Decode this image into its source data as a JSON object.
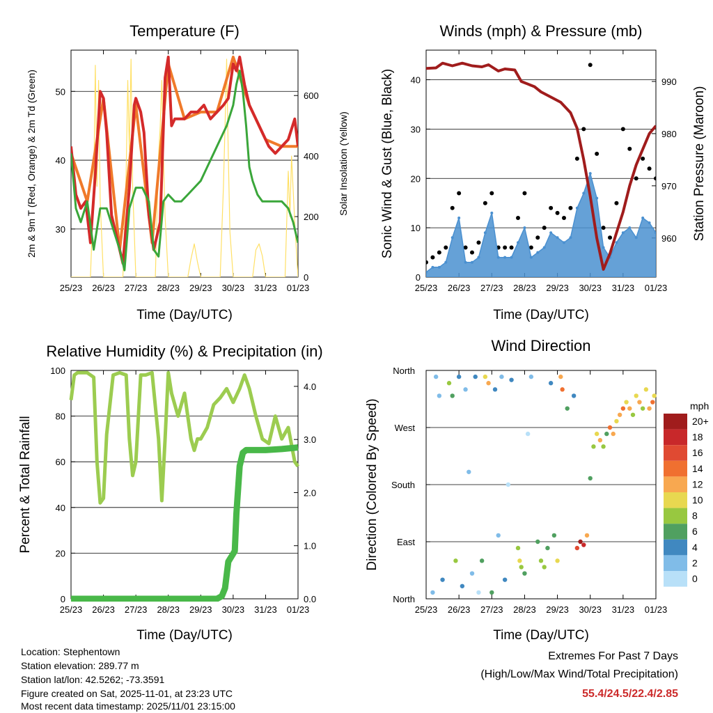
{
  "chart_data": [
    {
      "type": "line",
      "title": "Temperature (F)",
      "xlabel": "Time (Day/UTC)",
      "ylabel": "2m & 9m T (Red, Orange) & 2m Td (Green)",
      "ylabel_right": "Solar Insolation (Yellow)",
      "x_ticks": [
        "25/23",
        "26/23",
        "27/23",
        "28/23",
        "29/23",
        "30/23",
        "31/23",
        "01/23"
      ],
      "ylim": [
        23,
        56
      ],
      "y_ticks": [
        30,
        40,
        50
      ],
      "ylim_right": [
        0,
        750
      ],
      "y_ticks_right": [
        0,
        200,
        400,
        600
      ],
      "grid": "horizontal",
      "series": [
        {
          "name": "2m T",
          "color": "#d42a2a",
          "x": [
            0,
            0.15,
            0.3,
            0.45,
            0.6,
            0.75,
            0.9,
            1.0,
            1.1,
            1.25,
            1.4,
            1.6,
            1.8,
            1.95,
            2.0,
            2.15,
            2.25,
            2.4,
            2.55,
            2.75,
            2.9,
            3.0,
            3.1,
            3.2,
            3.35,
            3.5,
            3.7,
            3.9,
            4.1,
            4.3,
            4.5,
            4.7,
            4.85,
            5.0,
            5.1,
            5.2,
            5.35,
            5.5,
            5.7,
            5.9,
            6.1,
            6.3,
            6.5,
            6.7,
            6.9,
            7.0
          ],
          "values": [
            42,
            35,
            33,
            34,
            28,
            38,
            50,
            49,
            44,
            32,
            29,
            25,
            36,
            48,
            49,
            47,
            44,
            32,
            27,
            31,
            52,
            55,
            45,
            46,
            46,
            46,
            47,
            47,
            48,
            46,
            47,
            48,
            49,
            54,
            53,
            55,
            51,
            48,
            46,
            44,
            42,
            41,
            42,
            43,
            46,
            42
          ]
        },
        {
          "name": "9m T",
          "color": "#f07a2a",
          "x": [
            0,
            0.5,
            1.0,
            1.5,
            2.0,
            2.5,
            3.0,
            3.5,
            4.0,
            4.5,
            5.0,
            5.5,
            6.0,
            6.5,
            7.0
          ],
          "values": [
            41,
            34,
            49,
            27,
            48,
            28,
            54,
            46,
            47,
            47,
            55,
            48,
            43,
            42,
            42
          ]
        },
        {
          "name": "2m Td",
          "color": "#3aa63a",
          "x": [
            0,
            0.15,
            0.3,
            0.5,
            0.7,
            0.9,
            1.0,
            1.1,
            1.3,
            1.5,
            1.65,
            1.8,
            2.0,
            2.2,
            2.4,
            2.55,
            2.7,
            2.85,
            3.0,
            3.2,
            3.4,
            3.6,
            3.8,
            4.0,
            4.2,
            4.4,
            4.6,
            4.8,
            5.0,
            5.1,
            5.2,
            5.3,
            5.4,
            5.5,
            5.6,
            5.75,
            5.9,
            6.1,
            6.3,
            6.5,
            6.7,
            6.85,
            7.0
          ],
          "values": [
            41,
            33,
            31,
            34,
            27,
            33,
            33,
            33,
            30,
            27,
            24,
            33,
            36,
            36,
            34,
            27,
            26,
            34,
            35,
            34,
            34,
            35,
            36,
            37,
            39,
            41,
            43,
            45,
            48,
            51,
            53,
            50,
            45,
            39,
            37,
            35,
            34,
            34,
            34,
            34,
            33,
            31,
            28
          ]
        },
        {
          "name": "Solar Insolation",
          "color": "#ffe066",
          "axis": "right",
          "x": [
            0,
            0.6,
            0.7,
            0.75,
            0.8,
            0.85,
            0.9,
            1.0,
            1.6,
            1.7,
            1.75,
            1.8,
            1.85,
            1.9,
            2.0,
            2.6,
            2.7,
            2.75,
            2.8,
            2.85,
            2.9,
            3.0,
            3.6,
            3.7,
            3.8,
            3.9,
            4.0,
            4.6,
            4.7,
            4.75,
            4.8,
            4.85,
            4.9,
            5.0,
            5.6,
            5.7,
            5.8,
            5.9,
            6.0,
            6.6,
            6.7,
            6.75,
            6.8,
            6.9,
            7.0
          ],
          "values": [
            0,
            0,
            300,
            700,
            300,
            650,
            250,
            0,
            0,
            350,
            650,
            420,
            720,
            300,
            0,
            0,
            400,
            500,
            650,
            400,
            200,
            0,
            0,
            60,
            110,
            50,
            0,
            0,
            300,
            500,
            720,
            400,
            150,
            0,
            0,
            90,
            110,
            70,
            0,
            0,
            350,
            200,
            400,
            180,
            0
          ]
        }
      ]
    },
    {
      "type": "scatter",
      "title": "Winds (mph) & Pressure (mb)",
      "xlabel": "Time (Day/UTC)",
      "ylabel": "Sonic Wind & Gust (Blue, Black)",
      "ylabel_right": "Station Pressure (Maroon)",
      "x_ticks": [
        "25/23",
        "26/23",
        "27/23",
        "28/23",
        "29/23",
        "30/23",
        "31/23",
        "01/23"
      ],
      "ylim": [
        0,
        46
      ],
      "y_ticks": [
        0,
        10,
        20,
        30,
        40
      ],
      "ylim_right": [
        952.5,
        996
      ],
      "y_ticks_right": [
        960,
        970,
        980,
        990
      ],
      "grid": "horizontal",
      "series": [
        {
          "name": "Sonic Wind",
          "color": "#4a90d0",
          "x": [
            0,
            0.2,
            0.4,
            0.6,
            0.8,
            1.0,
            1.2,
            1.4,
            1.6,
            1.8,
            2.0,
            2.2,
            2.4,
            2.6,
            2.8,
            3.0,
            3.2,
            3.4,
            3.6,
            3.8,
            4.0,
            4.2,
            4.4,
            4.6,
            4.8,
            5.0,
            5.2,
            5.4,
            5.6,
            5.8,
            6.0,
            6.2,
            6.4,
            6.6,
            6.8,
            7.0
          ],
          "values": [
            1,
            2,
            2,
            3,
            8,
            12,
            3,
            3,
            4,
            9,
            13,
            4,
            4,
            4,
            7,
            10,
            4,
            5,
            6,
            9,
            8,
            7,
            8,
            14,
            17,
            21,
            16,
            6,
            4,
            7,
            9,
            10,
            8,
            12,
            11,
            9
          ]
        },
        {
          "name": "Gust",
          "color": "#000000",
          "x": [
            0,
            0.2,
            0.4,
            0.6,
            0.8,
            1.0,
            1.2,
            1.4,
            1.6,
            1.8,
            2.0,
            2.2,
            2.4,
            2.6,
            2.8,
            3.0,
            3.2,
            3.4,
            3.6,
            3.8,
            4.0,
            4.2,
            4.4,
            4.6,
            4.8,
            5.0,
            5.2,
            5.4,
            5.6,
            5.8,
            6.0,
            6.2,
            6.4,
            6.6,
            6.8,
            7.0
          ],
          "values": [
            3,
            4,
            5,
            6,
            14,
            17,
            6,
            5,
            7,
            15,
            17,
            6,
            6,
            6,
            12,
            17,
            6,
            8,
            10,
            14,
            13,
            12,
            14,
            24,
            30,
            43,
            25,
            10,
            8,
            15,
            30,
            26,
            20,
            24,
            22,
            20
          ]
        },
        {
          "name": "Station Pressure",
          "color": "#a01c1c",
          "axis": "right",
          "x": [
            0,
            0.3,
            0.5,
            0.8,
            1.1,
            1.4,
            1.7,
            1.9,
            2.2,
            2.4,
            2.7,
            2.9,
            3.1,
            3.3,
            3.5,
            3.8,
            4.1,
            4.4,
            4.6,
            4.8,
            5.0,
            5.2,
            5.4,
            5.6,
            5.8,
            6.0,
            6.2,
            6.4,
            6.6,
            6.8,
            7.0
          ],
          "values": [
            992.5,
            992.6,
            993.5,
            993.0,
            993.5,
            993.0,
            992.8,
            993.2,
            992.0,
            992.4,
            992.2,
            990.0,
            989.5,
            989.0,
            988.0,
            987.0,
            986.0,
            984.0,
            981.0,
            975.0,
            968.0,
            960.0,
            954.0,
            957.0,
            961.0,
            965.0,
            970.0,
            974.0,
            977.0,
            980.0,
            981.5
          ]
        }
      ]
    },
    {
      "type": "line",
      "title": "Relative Humidity (%) & Precipitation (in)",
      "xlabel": "Time (Day/UTC)",
      "ylabel": "Percent & Total Rainfall",
      "x_ticks": [
        "25/23",
        "26/23",
        "27/23",
        "28/23",
        "29/23",
        "30/23",
        "31/23",
        "01/23"
      ],
      "ylim": [
        0,
        100
      ],
      "y_ticks": [
        0,
        20,
        40,
        60,
        80,
        100
      ],
      "ylim_right": [
        0,
        4.3
      ],
      "y_ticks_right": [
        "0.0",
        "1.0",
        "2.0",
        "3.0",
        "4.0"
      ],
      "grid": "horizontal",
      "series": [
        {
          "name": "Relative Humidity",
          "color": "#9ccc50",
          "x": [
            0,
            0.1,
            0.2,
            0.5,
            0.7,
            0.8,
            0.9,
            1.0,
            1.1,
            1.3,
            1.5,
            1.7,
            1.8,
            1.9,
            2.0,
            2.15,
            2.3,
            2.5,
            2.7,
            2.8,
            2.9,
            3.0,
            3.1,
            3.3,
            3.5,
            3.7,
            3.8,
            3.9,
            4.0,
            4.2,
            4.4,
            4.6,
            4.8,
            5.0,
            5.2,
            5.35,
            5.5,
            5.7,
            5.9,
            6.1,
            6.3,
            6.5,
            6.7,
            6.9,
            7.0
          ],
          "values": [
            87,
            98,
            99,
            99,
            97,
            60,
            42,
            44,
            72,
            98,
            99,
            98,
            70,
            54,
            60,
            98,
            98,
            99,
            70,
            43,
            70,
            99,
            90,
            80,
            90,
            70,
            65,
            70,
            70,
            75,
            85,
            88,
            92,
            86,
            92,
            98,
            92,
            80,
            70,
            68,
            80,
            70,
            75,
            60,
            58
          ]
        },
        {
          "name": "Total Rainfall",
          "color": "#49b849",
          "axis": "right",
          "x": [
            0,
            4.5,
            4.65,
            4.75,
            4.85,
            5.0,
            5.05,
            5.1,
            5.2,
            5.3,
            5.4,
            6.0,
            6.5,
            7.0
          ],
          "values": [
            0.0,
            0.0,
            0.05,
            0.2,
            0.7,
            0.85,
            0.9,
            1.6,
            2.5,
            2.75,
            2.8,
            2.8,
            2.82,
            2.85
          ]
        }
      ]
    },
    {
      "type": "scatter",
      "title": "Wind Direction",
      "xlabel": "Time (Day/UTC)",
      "ylabel": "Direction (Colored By Speed)",
      "x_ticks": [
        "25/23",
        "26/23",
        "27/23",
        "28/23",
        "29/23",
        "30/23",
        "31/23",
        "01/23"
      ],
      "ylim": [
        0,
        360
      ],
      "y_ticks": [
        "North",
        "East",
        "South",
        "West",
        "North"
      ],
      "grid": "horizontal",
      "colorbar": {
        "title": "mph",
        "labels": [
          "20+",
          "18",
          "16",
          "14",
          "12",
          "10",
          "8",
          "6",
          "4",
          "2",
          "0"
        ],
        "colors": [
          "#a01c1c",
          "#c8282a",
          "#e04a32",
          "#f07030",
          "#f8a850",
          "#e8d850",
          "#98c840",
          "#50a060",
          "#4088c0",
          "#80bce8",
          "#b8e0f8"
        ]
      },
      "points": [
        [
          0.2,
          10,
          2
        ],
        [
          0.3,
          350,
          3
        ],
        [
          0.4,
          320,
          2
        ],
        [
          0.5,
          30,
          4
        ],
        [
          0.7,
          340,
          9
        ],
        [
          0.8,
          320,
          7
        ],
        [
          0.9,
          60,
          8
        ],
        [
          1.0,
          350,
          5
        ],
        [
          1.1,
          20,
          5
        ],
        [
          1.2,
          330,
          3
        ],
        [
          1.3,
          200,
          2
        ],
        [
          1.4,
          40,
          3
        ],
        [
          1.5,
          350,
          4
        ],
        [
          1.6,
          10,
          1
        ],
        [
          1.7,
          60,
          7
        ],
        [
          1.8,
          350,
          10
        ],
        [
          1.9,
          340,
          12
        ],
        [
          2.0,
          10,
          6
        ],
        [
          2.1,
          330,
          4
        ],
        [
          2.2,
          100,
          2
        ],
        [
          2.3,
          350,
          3
        ],
        [
          2.4,
          30,
          4
        ],
        [
          2.5,
          180,
          1
        ],
        [
          2.6,
          345,
          5
        ],
        [
          2.8,
          80,
          9
        ],
        [
          2.85,
          60,
          10
        ],
        [
          2.9,
          50,
          8
        ],
        [
          3.0,
          40,
          7
        ],
        [
          3.1,
          260,
          1
        ],
        [
          3.2,
          350,
          2
        ],
        [
          3.4,
          90,
          6
        ],
        [
          3.5,
          60,
          8
        ],
        [
          3.6,
          50,
          9
        ],
        [
          3.7,
          80,
          7
        ],
        [
          3.8,
          340,
          4
        ],
        [
          3.9,
          100,
          6
        ],
        [
          4.0,
          60,
          10
        ],
        [
          4.1,
          350,
          12
        ],
        [
          4.15,
          330,
          14
        ],
        [
          4.3,
          300,
          7
        ],
        [
          4.5,
          320,
          4
        ],
        [
          4.6,
          80,
          16
        ],
        [
          4.7,
          90,
          20
        ],
        [
          4.8,
          85,
          18
        ],
        [
          4.9,
          100,
          12
        ],
        [
          5.0,
          190,
          6
        ],
        [
          5.1,
          240,
          8
        ],
        [
          5.2,
          260,
          10
        ],
        [
          5.3,
          250,
          12
        ],
        [
          5.4,
          240,
          9
        ],
        [
          5.5,
          260,
          7
        ],
        [
          5.6,
          270,
          14
        ],
        [
          5.7,
          260,
          12
        ],
        [
          5.8,
          280,
          11
        ],
        [
          5.9,
          290,
          13
        ],
        [
          6.0,
          300,
          14
        ],
        [
          6.1,
          310,
          10
        ],
        [
          6.2,
          300,
          12
        ],
        [
          6.3,
          290,
          8
        ],
        [
          6.4,
          320,
          10
        ],
        [
          6.5,
          310,
          13
        ],
        [
          6.6,
          300,
          9
        ],
        [
          6.7,
          330,
          11
        ],
        [
          6.8,
          300,
          12
        ],
        [
          6.9,
          310,
          14
        ],
        [
          6.95,
          320,
          10
        ]
      ]
    }
  ],
  "station_info": {
    "location": "Location: Stephentown",
    "elevation": "Station elevation: 289.77 m",
    "latlon": "Station lat/lon: 42.5262; -73.3591",
    "created": "Figure created on Sat, 2025-11-01, at 23:23 UTC",
    "recent": "Most recent data timestamp: 2025/11/01 23:15:00"
  },
  "extremes": {
    "title": "Extremes For Past 7 Days",
    "subtitle": "(High/Low/Max Wind/Total Precipitation)",
    "values": "55.4/24.5/22.4/2.85"
  }
}
